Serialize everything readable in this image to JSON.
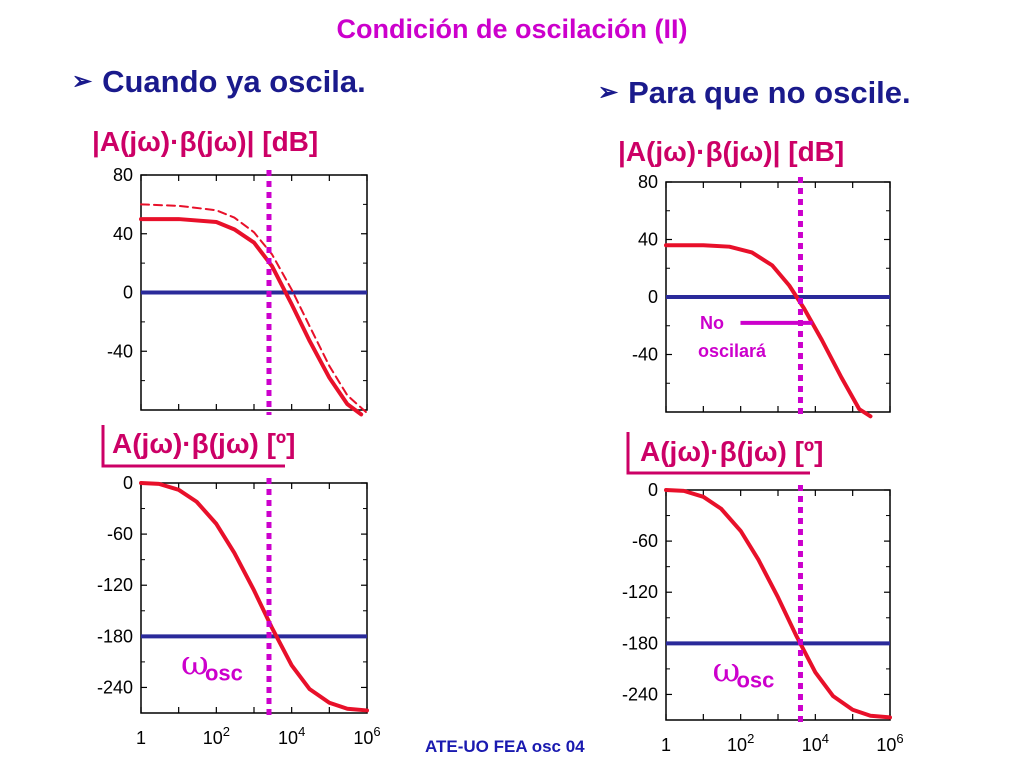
{
  "title": "Condición de oscilación (II)",
  "left_bullet": "Cuando ya oscila.",
  "right_bullet": "Para que no oscile.",
  "bullet_arrow": "➢",
  "magnitude_label": "|A(jω)·β(jω)|  [dB]",
  "phase_label": "A(jω)·β(jω)  [º]",
  "omega_symbol": "ω",
  "omega_subscript": "osc",
  "no_oscilara_line1": "No",
  "no_oscilara_line2": "oscilará",
  "footer": "ATE-UO FEA osc 04",
  "colors": {
    "title": "#cc00cc",
    "bullet": "#1a1a8c",
    "curve": "#e8102a",
    "reference": "#2a2a9a",
    "marker": "#cc00cc"
  },
  "chart_data": [
    {
      "id": "left-mag",
      "type": "line",
      "title": "|A(jω)·β(jω)|  [dB]",
      "xscale": "log",
      "xlim": [
        1,
        1000000
      ],
      "ylim": [
        -80,
        80
      ],
      "yticks": [
        80,
        40,
        0,
        -40
      ],
      "ytick_labels": [
        "80",
        "40",
        "0",
        "-40"
      ],
      "series": [
        {
          "style": "solid",
          "color": "#e8102a",
          "x": [
            1,
            10,
            100,
            300,
            1000,
            3000,
            10000,
            30000,
            100000,
            300000,
            700000
          ],
          "y": [
            50,
            50,
            48,
            43,
            34,
            18,
            -8,
            -33,
            -58,
            -76,
            -83
          ]
        },
        {
          "style": "dashed",
          "color": "#e8102a",
          "x": [
            1,
            10,
            100,
            300,
            1000,
            3000,
            10000,
            30000,
            100000,
            300000,
            1100000
          ],
          "y": [
            60,
            59,
            56,
            51,
            41,
            26,
            2,
            -23,
            -50,
            -70,
            -83
          ]
        }
      ],
      "hline": 0,
      "vline_x": 2500
    },
    {
      "id": "left-phase",
      "type": "line",
      "title": "A(jω)·β(jω)  [º]",
      "xscale": "log",
      "xlim": [
        1,
        1000000
      ],
      "xticks": [
        1,
        100,
        10000,
        1000000
      ],
      "xtick_labels": [
        {
          "base": "1",
          "exp": ""
        },
        {
          "base": "10",
          "exp": "2"
        },
        {
          "base": "10",
          "exp": "4"
        },
        {
          "base": "10",
          "exp": "6"
        }
      ],
      "ylim": [
        -270,
        0
      ],
      "yticks": [
        0,
        -60,
        -120,
        -180,
        -240
      ],
      "ytick_labels": [
        "0",
        "-60",
        "-120",
        "-180",
        "-240"
      ],
      "series": [
        {
          "style": "solid",
          "color": "#e8102a",
          "x": [
            1,
            3,
            10,
            30,
            100,
            300,
            1000,
            3000,
            10000,
            30000,
            100000,
            300000,
            1000000
          ],
          "y": [
            0,
            -1,
            -8,
            -22,
            -48,
            -82,
            -126,
            -170,
            -214,
            -242,
            -258,
            -265,
            -267
          ]
        }
      ],
      "hline": -180,
      "vline_x": 2500
    },
    {
      "id": "right-mag",
      "type": "line",
      "title": "|A(jω)·β(jω)|  [dB]",
      "xscale": "log",
      "xlim": [
        1,
        1000000
      ],
      "ylim": [
        -80,
        80
      ],
      "yticks": [
        80,
        40,
        0,
        -40
      ],
      "ytick_labels": [
        "80",
        "40",
        "0",
        "-40"
      ],
      "series": [
        {
          "style": "solid",
          "color": "#e8102a",
          "x": [
            1,
            10,
            50,
            200,
            700,
            2000,
            5000,
            15000,
            50000,
            150000,
            300000
          ],
          "y": [
            36,
            36,
            35,
            31,
            22,
            8,
            -8,
            -30,
            -56,
            -78,
            -83
          ]
        }
      ],
      "hline": 0,
      "vline_x": 4000,
      "annotation": {
        "text": [
          "No",
          "oscilará"
        ],
        "at_y": -18
      }
    },
    {
      "id": "right-phase",
      "type": "line",
      "title": "A(jω)·β(jω)  [º]",
      "xscale": "log",
      "xlim": [
        1,
        1000000
      ],
      "xticks": [
        1,
        100,
        10000,
        1000000
      ],
      "xtick_labels": [
        {
          "base": "1",
          "exp": ""
        },
        {
          "base": "10",
          "exp": "2"
        },
        {
          "base": "10",
          "exp": "4"
        },
        {
          "base": "10",
          "exp": "6"
        }
      ],
      "ylim": [
        -270,
        0
      ],
      "yticks": [
        0,
        -60,
        -120,
        -180,
        -240
      ],
      "ytick_labels": [
        "0",
        "-60",
        "-120",
        "-180",
        "-240"
      ],
      "series": [
        {
          "style": "solid",
          "color": "#e8102a",
          "x": [
            1,
            3,
            10,
            30,
            100,
            300,
            1000,
            3000,
            10000,
            30000,
            100000,
            300000,
            1000000
          ],
          "y": [
            0,
            -1,
            -8,
            -22,
            -48,
            -82,
            -126,
            -170,
            -214,
            -242,
            -258,
            -265,
            -267
          ]
        }
      ],
      "hline": -180,
      "vline_x": 4000
    }
  ]
}
